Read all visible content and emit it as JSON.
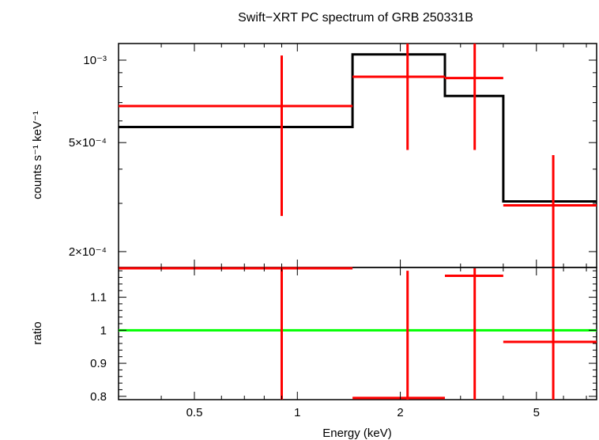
{
  "chart_data": [
    {
      "type": "line",
      "title": "Swift−XRT PC spectrum of GRB 250331B",
      "xlabel": "Energy (keV)",
      "ylabel": "counts s⁻¹ keV⁻¹",
      "x_scale": "log",
      "y_scale": "log",
      "xlim": [
        0.3,
        7.5
      ],
      "ylim": [
        0.000175,
        0.00115
      ],
      "x_ticks": [
        {
          "value": 0.5,
          "label": "0.5"
        },
        {
          "value": 1,
          "label": "1"
        },
        {
          "value": 2,
          "label": "2"
        },
        {
          "value": 5,
          "label": "5"
        }
      ],
      "y_ticks": [
        {
          "value": 0.001,
          "label": "10⁻³"
        },
        {
          "value": 0.0005,
          "label": "5×10⁻⁴"
        },
        {
          "value": 0.0002,
          "label": "2×10⁻⁴"
        }
      ],
      "series": [
        {
          "style": "step-model",
          "color": "#000000",
          "bins": [
            {
              "x_lo": 0.3,
              "x_hi": 1.45,
              "y": 0.00057
            },
            {
              "x_lo": 1.45,
              "x_hi": 2.7,
              "y": 0.00105
            },
            {
              "x_lo": 2.7,
              "x_hi": 4.0,
              "y": 0.00074
            },
            {
              "x_lo": 4.0,
              "x_hi": 7.5,
              "y": 0.000305
            }
          ]
        },
        {
          "style": "crosses",
          "color": "#ff0000",
          "points": [
            {
              "x": 0.9,
              "x_lo": 0.3,
              "x_hi": 1.45,
              "y": 0.00068,
              "y_lo": 0.00027,
              "y_hi": 0.00104
            },
            {
              "x": 2.1,
              "x_lo": 1.45,
              "x_hi": 2.7,
              "y": 0.00087,
              "y_lo": 0.00047,
              "y_hi": 0.00115
            },
            {
              "x": 3.3,
              "x_lo": 2.7,
              "x_hi": 4.0,
              "y": 0.00086,
              "y_lo": 0.00047,
              "y_hi": 0.00115
            },
            {
              "x": 5.6,
              "x_lo": 4.0,
              "x_hi": 7.5,
              "y": 0.000295,
              "y_lo": 0.000175,
              "y_hi": 0.00045
            }
          ]
        }
      ]
    },
    {
      "type": "line",
      "xlabel": "Energy (keV)",
      "ylabel": "ratio",
      "x_scale": "log",
      "y_scale": "linear",
      "xlim": [
        0.3,
        7.5
      ],
      "ylim": [
        0.79,
        1.19
      ],
      "y_ticks": [
        {
          "value": 1.1,
          "label": "1.1"
        },
        {
          "value": 1.0,
          "label": "1"
        },
        {
          "value": 0.9,
          "label": "0.9"
        },
        {
          "value": 0.8,
          "label": "0.8"
        }
      ],
      "reference_line": {
        "y": 1.0,
        "color": "#00ff00"
      },
      "series": [
        {
          "style": "crosses",
          "color": "#ff0000",
          "points": [
            {
              "x": 0.9,
              "x_lo": 0.3,
              "x_hi": 1.45,
              "y": 1.19,
              "y_lo": 0.79,
              "y_hi": 1.19
            },
            {
              "x": 2.1,
              "x_lo": 1.45,
              "x_hi": 2.7,
              "y": 0.795,
              "y_lo": 0.79,
              "y_hi": 1.18
            },
            {
              "x": 3.3,
              "x_lo": 2.7,
              "x_hi": 4.0,
              "y": 1.165,
              "y_lo": 0.79,
              "y_hi": 1.19
            },
            {
              "x": 5.6,
              "x_lo": 4.0,
              "x_hi": 7.5,
              "y": 0.965,
              "y_lo": 0.79,
              "y_hi": 1.19
            }
          ]
        }
      ]
    }
  ]
}
